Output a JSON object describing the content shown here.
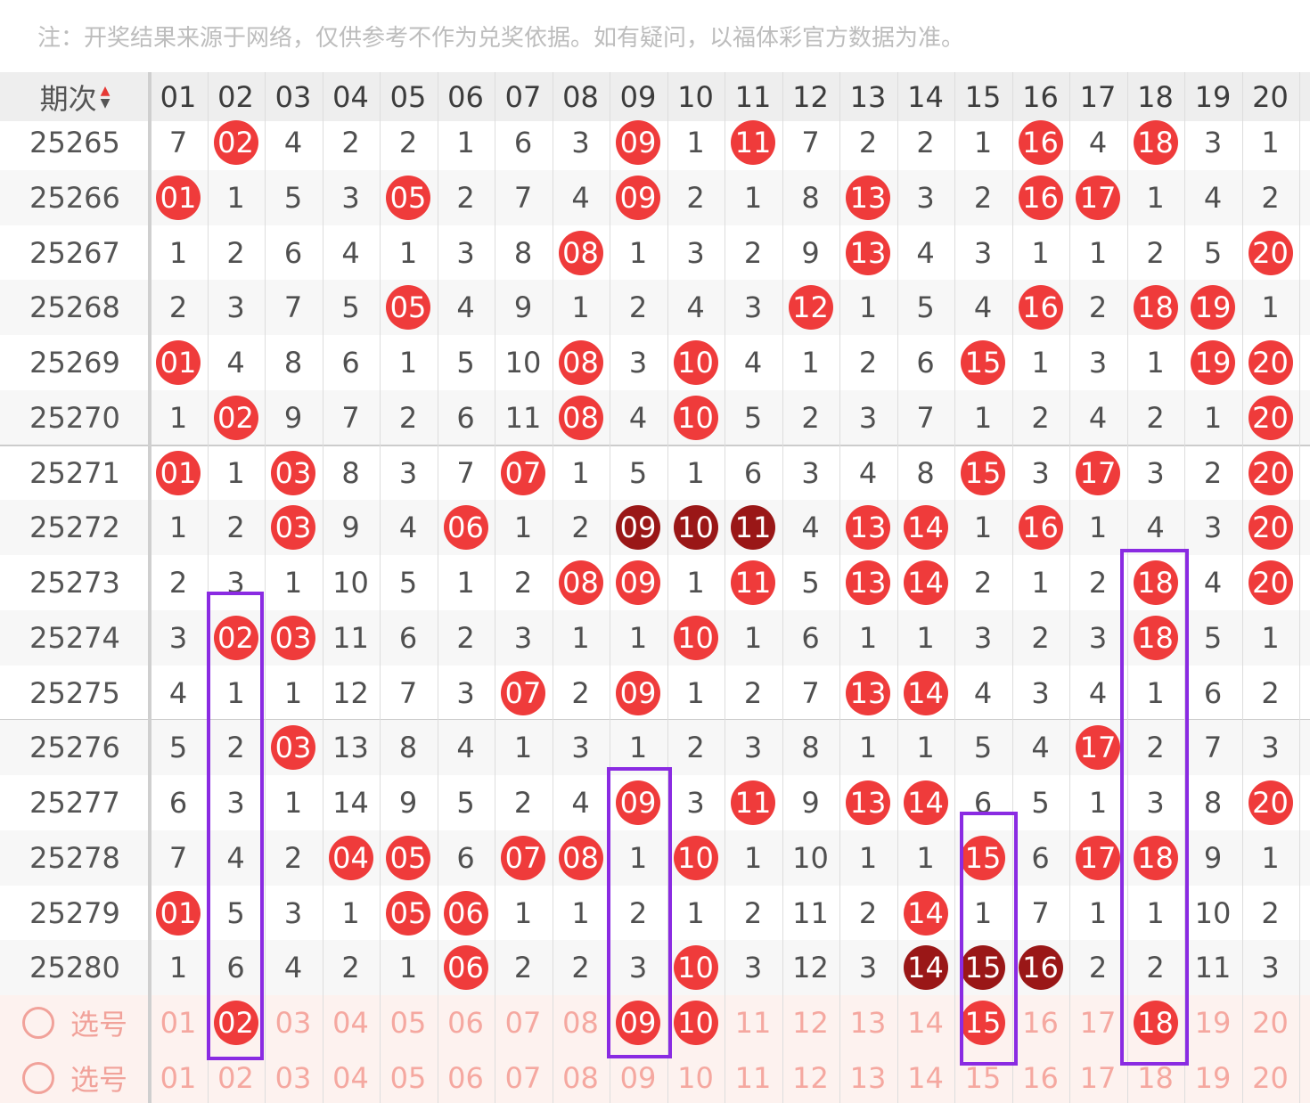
{
  "notice": "注：开奖结果来源于网络，仅供参考不作为兑奖依据。如有疑问，以福体彩官方数据为准。",
  "header": {
    "period_label": "期次",
    "numbers": [
      "01",
      "02",
      "03",
      "04",
      "05",
      "06",
      "07",
      "08",
      "09",
      "10",
      "11",
      "12",
      "13",
      "14",
      "15",
      "16",
      "17",
      "18",
      "19",
      "20"
    ]
  },
  "rows": [
    {
      "period": "25265",
      "cells": [
        "7",
        "02",
        "4",
        "2",
        "2",
        "1",
        "6",
        "3",
        "09",
        "1",
        "11",
        "7",
        "2",
        "2",
        "1",
        "16",
        "4",
        "18",
        "3",
        "1"
      ],
      "hits": [
        2,
        9,
        11,
        16,
        18
      ]
    },
    {
      "period": "25266",
      "cells": [
        "01",
        "1",
        "5",
        "3",
        "05",
        "2",
        "7",
        "4",
        "09",
        "2",
        "1",
        "8",
        "13",
        "3",
        "2",
        "16",
        "17",
        "1",
        "4",
        "2"
      ],
      "hits": [
        1,
        5,
        9,
        13,
        16,
        17
      ]
    },
    {
      "period": "25267",
      "cells": [
        "1",
        "2",
        "6",
        "4",
        "1",
        "3",
        "8",
        "08",
        "1",
        "3",
        "2",
        "9",
        "13",
        "4",
        "3",
        "1",
        "1",
        "2",
        "5",
        "20"
      ],
      "hits": [
        8,
        13,
        20
      ]
    },
    {
      "period": "25268",
      "cells": [
        "2",
        "3",
        "7",
        "5",
        "05",
        "4",
        "9",
        "1",
        "2",
        "4",
        "3",
        "12",
        "1",
        "5",
        "4",
        "16",
        "2",
        "18",
        "19",
        "1"
      ],
      "hits": [
        5,
        12,
        16,
        18,
        19
      ]
    },
    {
      "period": "25269",
      "cells": [
        "01",
        "4",
        "8",
        "6",
        "1",
        "5",
        "10",
        "08",
        "3",
        "10",
        "4",
        "1",
        "2",
        "6",
        "15",
        "1",
        "3",
        "1",
        "19",
        "20"
      ],
      "hits": [
        1,
        8,
        10,
        15,
        19,
        20
      ]
    },
    {
      "period": "25270",
      "cells": [
        "1",
        "02",
        "9",
        "7",
        "2",
        "6",
        "11",
        "08",
        "4",
        "10",
        "5",
        "2",
        "3",
        "7",
        "1",
        "2",
        "4",
        "2",
        "1",
        "20"
      ],
      "hits": [
        2,
        8,
        10,
        20
      ]
    },
    {
      "period": "25271",
      "cells": [
        "01",
        "1",
        "03",
        "8",
        "3",
        "7",
        "07",
        "1",
        "5",
        "1",
        "6",
        "3",
        "4",
        "8",
        "15",
        "3",
        "17",
        "3",
        "2",
        "20"
      ],
      "hits": [
        1,
        3,
        7,
        15,
        17,
        20
      ]
    },
    {
      "period": "25272",
      "cells": [
        "1",
        "2",
        "03",
        "9",
        "4",
        "06",
        "1",
        "2",
        "09",
        "10",
        "11",
        "4",
        "13",
        "14",
        "1",
        "16",
        "1",
        "4",
        "3",
        "20"
      ],
      "hits": [
        3,
        6,
        9,
        10,
        11,
        13,
        14,
        16,
        20
      ],
      "dark": [
        9,
        10,
        11
      ]
    },
    {
      "period": "25273",
      "cells": [
        "2",
        "3",
        "1",
        "10",
        "5",
        "1",
        "2",
        "08",
        "09",
        "1",
        "11",
        "5",
        "13",
        "14",
        "2",
        "1",
        "2",
        "18",
        "4",
        "20"
      ],
      "hits": [
        8,
        9,
        11,
        13,
        14,
        18,
        20
      ]
    },
    {
      "period": "25274",
      "cells": [
        "3",
        "02",
        "03",
        "11",
        "6",
        "2",
        "3",
        "1",
        "1",
        "10",
        "1",
        "6",
        "1",
        "1",
        "3",
        "2",
        "3",
        "18",
        "5",
        "1"
      ],
      "hits": [
        2,
        3,
        10,
        18
      ]
    },
    {
      "period": "25275",
      "cells": [
        "4",
        "1",
        "1",
        "12",
        "7",
        "3",
        "07",
        "2",
        "09",
        "1",
        "2",
        "7",
        "13",
        "14",
        "4",
        "3",
        "4",
        "1",
        "6",
        "2"
      ],
      "hits": [
        7,
        9,
        13,
        14
      ]
    },
    {
      "period": "25276",
      "cells": [
        "5",
        "2",
        "03",
        "13",
        "8",
        "4",
        "1",
        "3",
        "1",
        "2",
        "3",
        "8",
        "1",
        "1",
        "5",
        "4",
        "17",
        "2",
        "7",
        "3"
      ],
      "hits": [
        3,
        17
      ]
    },
    {
      "period": "25277",
      "cells": [
        "6",
        "3",
        "1",
        "14",
        "9",
        "5",
        "2",
        "4",
        "09",
        "3",
        "11",
        "9",
        "13",
        "14",
        "6",
        "5",
        "1",
        "3",
        "8",
        "20"
      ],
      "hits": [
        9,
        11,
        13,
        14,
        20
      ]
    },
    {
      "period": "25278",
      "cells": [
        "7",
        "4",
        "2",
        "04",
        "05",
        "6",
        "07",
        "08",
        "1",
        "10",
        "1",
        "10",
        "1",
        "1",
        "15",
        "6",
        "17",
        "18",
        "9",
        "1"
      ],
      "hits": [
        4,
        5,
        7,
        8,
        10,
        15,
        17,
        18
      ]
    },
    {
      "period": "25279",
      "cells": [
        "01",
        "5",
        "3",
        "1",
        "05",
        "06",
        "1",
        "1",
        "2",
        "1",
        "2",
        "11",
        "2",
        "14",
        "1",
        "7",
        "1",
        "1",
        "10",
        "2"
      ],
      "hits": [
        1,
        5,
        6,
        14
      ]
    },
    {
      "period": "25280",
      "cells": [
        "1",
        "6",
        "4",
        "2",
        "1",
        "06",
        "2",
        "2",
        "3",
        "10",
        "3",
        "12",
        "3",
        "14",
        "15",
        "16",
        "2",
        "2",
        "11",
        "3"
      ],
      "hits": [
        6,
        10,
        14,
        15,
        16
      ],
      "dark": [
        14,
        15,
        16
      ]
    }
  ],
  "pick_rows": [
    {
      "label": "选号",
      "selected": [
        2,
        9,
        10,
        15,
        18
      ]
    },
    {
      "label": "选号",
      "selected": []
    }
  ],
  "colors": {
    "ball": "#ef3b3b",
    "ball_dark": "#9a1717",
    "highlight": "#8a2be2"
  }
}
